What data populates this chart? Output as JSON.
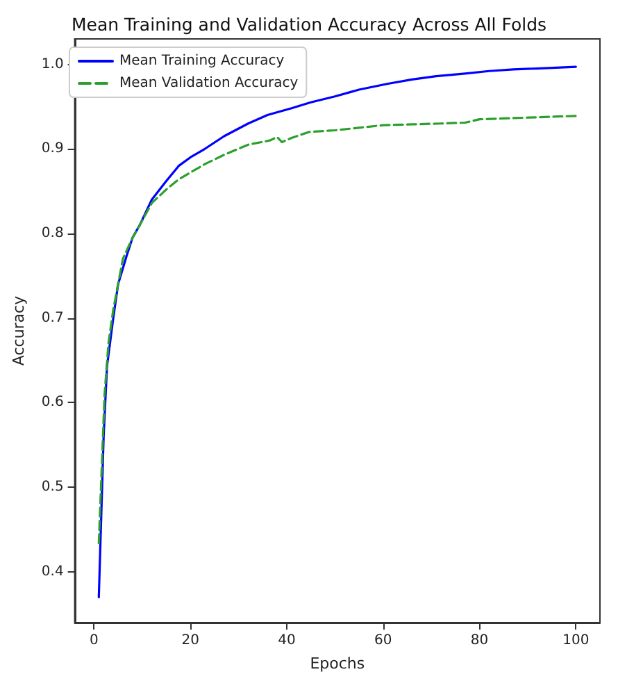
{
  "chart_data": {
    "type": "line",
    "title": "Mean Training and Validation Accuracy Across All Folds",
    "xlabel": "Epochs",
    "ylabel": "Accuracy",
    "xlim": [
      -4,
      105
    ],
    "xticks": [
      0,
      20,
      40,
      60,
      80,
      100
    ],
    "ylim": [
      0.34,
      1.03
    ],
    "yticks": [
      0.4,
      0.5,
      0.6,
      0.7,
      0.8,
      0.9,
      {
        "value": 1,
        "label": "1.0"
      }
    ],
    "grid": false,
    "legend": "top left",
    "marker": "none",
    "series": [
      {
        "name": "Mean Training Accuracy",
        "color": "#0000ff",
        "line_style": "solid",
        "x": [
          1,
          2,
          2.7,
          4,
          5,
          6.8,
          8,
          9.5,
          12,
          15,
          17.6,
          20,
          23,
          27,
          32,
          36,
          41,
          45,
          50,
          55,
          61,
          66,
          71,
          77,
          82,
          87,
          92,
          96,
          100
        ],
        "values": [
          0.37,
          0.56,
          0.643,
          0.7,
          0.74,
          0.774,
          0.795,
          0.81,
          0.84,
          0.862,
          0.88,
          0.89,
          0.9,
          0.915,
          0.93,
          0.94,
          0.948,
          0.955,
          0.962,
          0.97,
          0.977,
          0.982,
          0.986,
          0.989,
          0.992,
          0.994,
          0.995,
          0.996,
          0.997
        ]
      },
      {
        "name": "Mean Validation Accuracy",
        "color": "#2ca02c",
        "line_style": "dashed",
        "x": [
          1,
          2.2,
          3,
          4,
          6,
          8,
          9.5,
          12,
          15,
          17.6,
          20,
          23,
          27,
          32,
          36.5,
          38,
          39,
          41,
          44.6,
          50,
          55,
          60,
          66,
          72,
          77,
          80,
          85,
          90,
          95,
          100
        ],
        "values": [
          0.434,
          0.61,
          0.67,
          0.71,
          0.77,
          0.795,
          0.81,
          0.836,
          0.852,
          0.864,
          0.872,
          0.882,
          0.893,
          0.905,
          0.91,
          0.914,
          0.908,
          0.913,
          0.92,
          0.922,
          0.925,
          0.928,
          0.929,
          0.93,
          0.931,
          0.935,
          0.936,
          0.937,
          0.938,
          0.939
        ]
      }
    ]
  }
}
